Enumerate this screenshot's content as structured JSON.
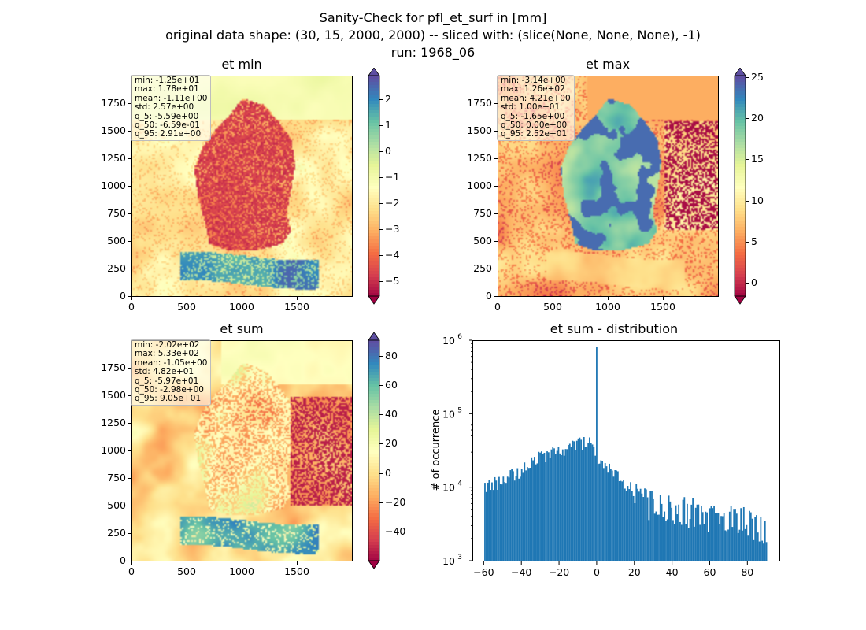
{
  "figure": {
    "title_line1": "Sanity-Check for pfl_et_surf in [mm]",
    "title_line2": "original data shape: (30, 15, 2000, 2000) -- sliced with: (slice(None, None, None), -1)",
    "title_line3": "run: 1968_06"
  },
  "panels": {
    "et_min": {
      "title": "et min",
      "stats": [
        "min: -1.25e+01",
        "max: 1.78e+01",
        "mean: -1.11e+00",
        "std: 2.57e+00",
        "q_5: -5.59e+00",
        "q_50: -6.59e-01",
        "q_95: 2.91e+00"
      ],
      "colorbar_ticks": [
        "2",
        "1",
        "0",
        "−1",
        "−2",
        "−3",
        "−4",
        "−5"
      ]
    },
    "et_max": {
      "title": "et max",
      "stats": [
        "min: -3.14e+00",
        "max: 1.26e+02",
        "mean: 4.21e+00",
        "std: 1.00e+01",
        "q_5: -1.65e+00",
        "q_50: 0.00e+00",
        "q_95: 2.52e+01"
      ],
      "colorbar_ticks": [
        "25",
        "20",
        "15",
        "10",
        "5",
        "0"
      ]
    },
    "et_sum": {
      "title": "et sum",
      "stats": [
        "min: -2.02e+02",
        "max: 5.33e+02",
        "mean: -1.05e+00",
        "std: 4.82e+01",
        "q_5: -5.97e+01",
        "q_50: -2.98e+00",
        "q_95: 9.05e+01"
      ],
      "colorbar_ticks": [
        "80",
        "60",
        "40",
        "20",
        "0",
        "−20",
        "−40"
      ]
    },
    "map_axes": {
      "y_ticks": [
        "1750",
        "1500",
        "1250",
        "1000",
        "750",
        "500",
        "250",
        "0"
      ],
      "x_ticks": [
        "0",
        "500",
        "1000",
        "1500"
      ]
    },
    "hist": {
      "title": "et sum - distribution",
      "ylabel": "# of occurrence",
      "x_ticks": [
        "−60",
        "−40",
        "−20",
        "0",
        "20",
        "40",
        "60",
        "80"
      ],
      "y_ticks": [
        "10",
        "10",
        "10",
        "10"
      ],
      "y_tick_exponents": [
        "6",
        "5",
        "4",
        "3"
      ]
    }
  },
  "chart_data": [
    {
      "type": "heatmap",
      "title": "et min",
      "xlim": [
        0,
        2000
      ],
      "ylim": [
        0,
        2000
      ],
      "colormap": "Spectral",
      "clim": [
        -5.59,
        2.91
      ],
      "colorbar_extend": "both"
    },
    {
      "type": "heatmap",
      "title": "et max",
      "xlim": [
        0,
        2000
      ],
      "ylim": [
        0,
        2000
      ],
      "colormap": "Spectral",
      "clim": [
        -1.65,
        25.2
      ],
      "colorbar_extend": "both"
    },
    {
      "type": "heatmap",
      "title": "et sum",
      "xlim": [
        0,
        2000
      ],
      "ylim": [
        0,
        2000
      ],
      "colormap": "Spectral",
      "clim": [
        -59.7,
        90.5
      ],
      "colorbar_extend": "both"
    },
    {
      "type": "bar",
      "title": "et sum - distribution",
      "ylabel": "# of occurrence",
      "xlabel": "",
      "xlim": [
        -66,
        97
      ],
      "ylim": [
        1000,
        1000000
      ],
      "yscale": "log",
      "color": "#1f77b4",
      "bin_range": [
        -59.7,
        90.5
      ],
      "spike": {
        "x": 0,
        "count": 820000
      },
      "profile": [
        {
          "x": -59.7,
          "count": 10000
        },
        {
          "x": -50,
          "count": 12000
        },
        {
          "x": -40,
          "count": 17000
        },
        {
          "x": -30,
          "count": 25000
        },
        {
          "x": -20,
          "count": 31000
        },
        {
          "x": -10,
          "count": 38000
        },
        {
          "x": -3,
          "count": 40000
        },
        {
          "x": 0,
          "count": 26000
        },
        {
          "x": 10,
          "count": 14000
        },
        {
          "x": 20,
          "count": 9000
        },
        {
          "x": 30,
          "count": 7500
        },
        {
          "x": 40,
          "count": 6500
        },
        {
          "x": 50,
          "count": 5800
        },
        {
          "x": 60,
          "count": 5000
        },
        {
          "x": 70,
          "count": 4700
        },
        {
          "x": 80,
          "count": 4500
        },
        {
          "x": 90.5,
          "count": 3000
        }
      ]
    }
  ]
}
